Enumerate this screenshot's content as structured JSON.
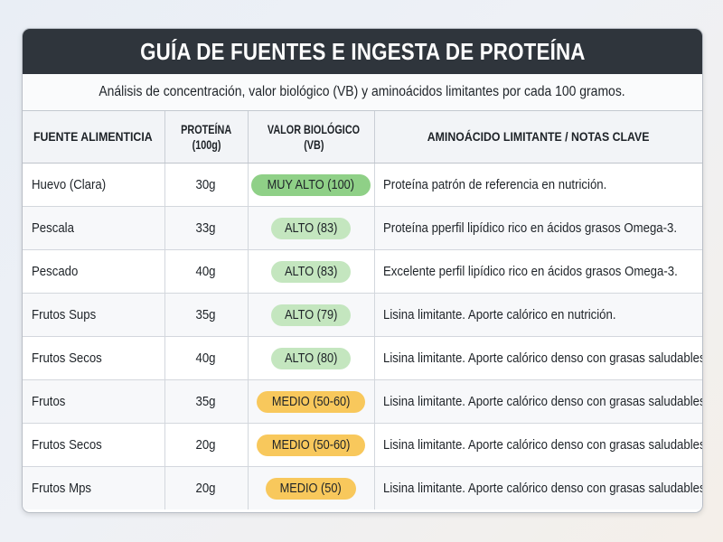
{
  "title": "GUÍA DE FUENTES E INGESTA DE PROTEÍNA",
  "subtitle": "Análisis de concentración, valor biológico (VB) y aminoácidos limitantes por cada 100 gramos.",
  "headers": {
    "food": "FUENTE ALIMENTICIA",
    "protein_line1": "PROTEÍNA",
    "protein_line2": "(100g)",
    "vb_line1": "VALOR BIOLÓGICO",
    "vb_line2": "(VB)",
    "notes": "AMINOÁCIDO LIMITANTE / NOTAS CLAVE"
  },
  "rows": [
    {
      "food": "Huevo (Clara)",
      "protein": "30g",
      "vb": "MUY ALTO (100)",
      "level": "hi",
      "note": "Proteína patrón de referencia en nutrición."
    },
    {
      "food": "Pescala",
      "protein": "33g",
      "vb": "ALTO (83)",
      "level": "al",
      "note": "Proteína pperfil lipídico rico en ácidos grasos Omega-3."
    },
    {
      "food": "Pescado",
      "protein": "40g",
      "vb": "ALTO (83)",
      "level": "al",
      "note": "Excelente perfil lipídico rico en ácidos grasos Omega-3."
    },
    {
      "food": "Frutos Sups",
      "protein": "35g",
      "vb": "ALTO (79)",
      "level": "al",
      "note": "Lisina limitante. Aporte calórico en nutrición."
    },
    {
      "food": "Frutos Secos",
      "protein": "40g",
      "vb": "ALTO (80)",
      "level": "al",
      "note": "Lisina limitante. Aporte calórico denso con grasas saludables."
    },
    {
      "food": "Frutos",
      "protein": "35g",
      "vb": "MEDIO (50-60)",
      "level": "me",
      "note": "Lisina limitante. Aporte calórico denso con grasas saludables."
    },
    {
      "food": "Frutos Secos",
      "protein": "20g",
      "vb": "MEDIO (50-60)",
      "level": "me",
      "note": "Lisina limitante. Aporte calórico denso con grasas saludables."
    },
    {
      "food": "Frutos Mps",
      "protein": "20g",
      "vb": "MEDIO (50)",
      "level": "me",
      "note": "Lisina limitante. Aporte calórico denso con grasas saludables."
    }
  ],
  "colors": {
    "title_bg": "#2f353c",
    "badge_very_high": "#8fd087",
    "badge_high": "#c4e6bf",
    "badge_medium": "#f8c85c"
  }
}
